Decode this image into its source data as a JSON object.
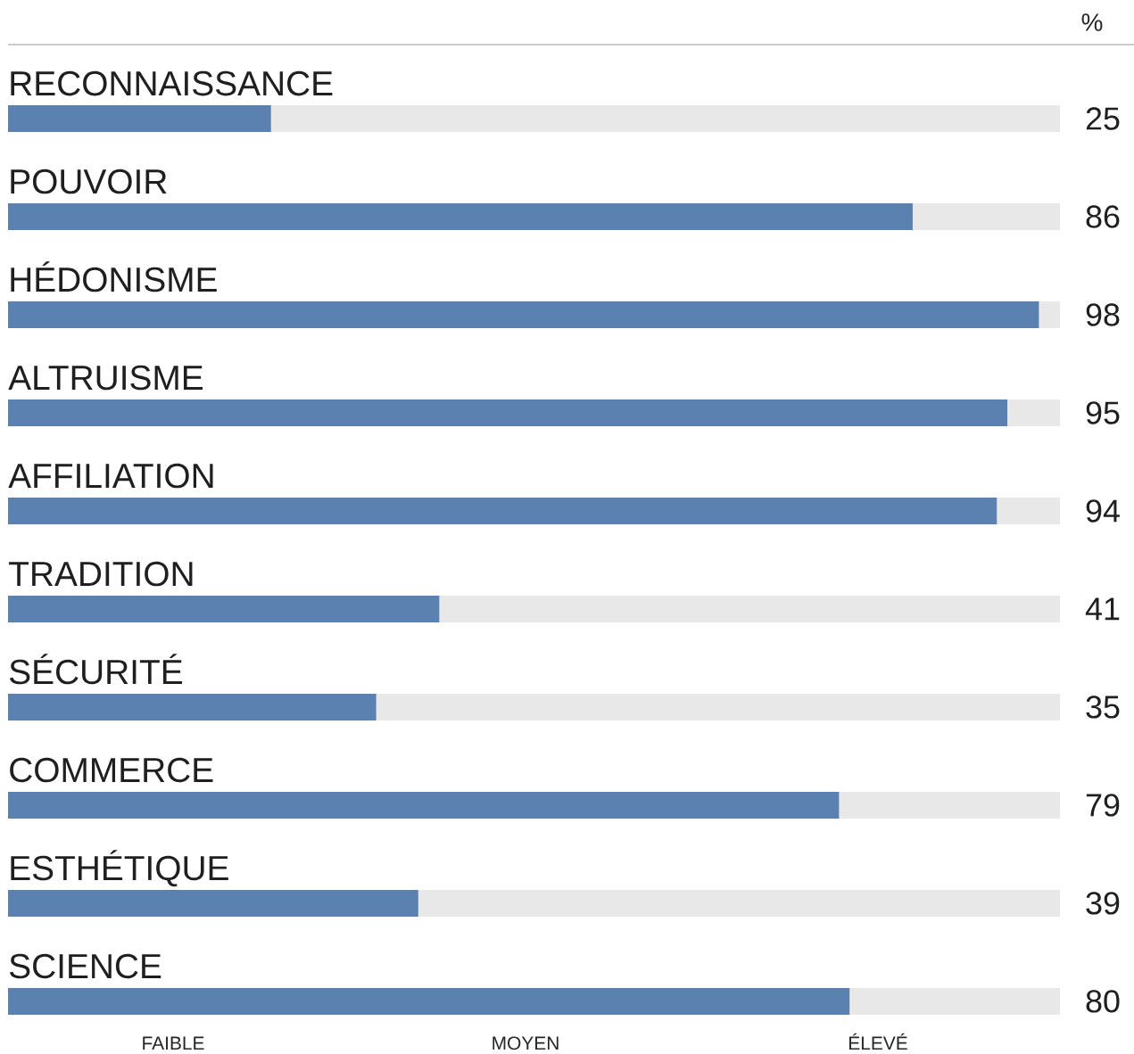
{
  "chart_data": {
    "type": "bar",
    "orientation": "horizontal",
    "stacked": true,
    "categories": [
      "RECONNAISSANCE",
      "POUVOIR",
      "HÉDONISME",
      "ALTRUISME",
      "AFFILIATION",
      "TRADITION",
      "SÉCURITÉ",
      "COMMERCE",
      "ESTHÉTIQUE",
      "SCIENCE"
    ],
    "series": [
      {
        "color": "#5a81b0",
        "values": [
          25,
          86,
          98,
          95,
          94,
          41,
          35,
          79,
          39,
          80
        ],
        "value_labels": [
          "25",
          "86",
          "98",
          "95",
          "94",
          "41",
          "35",
          "79",
          "39",
          "80"
        ]
      },
      {
        "color": "#e8e8e8",
        "values": [
          75,
          14,
          2,
          5,
          6,
          59,
          65,
          21,
          61,
          20
        ]
      }
    ],
    "xlim": [
      0,
      100
    ],
    "annotations": [
      "%",
      "FAIBLE",
      "MOYEN",
      "ÉLEVÉ"
    ]
  }
}
